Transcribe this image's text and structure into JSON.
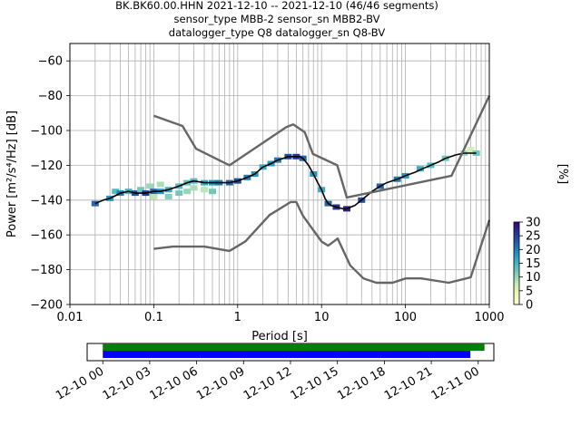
{
  "title_lines": [
    "BK.BK60.00.HHN   2021-12-10 -- 2021-12-10  (46/46 segments)",
    "sensor_type MBB-2 sensor_sn MBB2-BV",
    "datalogger_type Q8 datalogger_sn Q8-BV"
  ],
  "chart_data": [
    {
      "type": "line",
      "xlabel": "Period [s]",
      "ylabel": "Power [m²/s⁴/Hz] [dB]",
      "xscale": "log",
      "xlim": [
        0.01,
        1000
      ],
      "ylim": [
        -200,
        -50
      ],
      "x_ticks": [
        0.01,
        0.1,
        1,
        10,
        100,
        1000
      ],
      "x_tick_labels": [
        "0.01",
        "0.1",
        "1",
        "10",
        "100",
        "1000"
      ],
      "y_ticks": [
        -200,
        -180,
        -160,
        -140,
        -120,
        -100,
        -80,
        -60
      ],
      "y_tick_labels": [
        "−200",
        "−180",
        "−160",
        "−140",
        "−120",
        "−100",
        "−80",
        "−60"
      ],
      "grid": true,
      "series": [
        {
          "color": "#000000",
          "role": "mode",
          "x": [
            0.02,
            0.025,
            0.03,
            0.04,
            0.05,
            0.06,
            0.08,
            0.1,
            0.12,
            0.15,
            0.2,
            0.25,
            0.3,
            0.4,
            0.5,
            0.6,
            0.8,
            1,
            1.3,
            1.6,
            2,
            2.5,
            3,
            3.5,
            4,
            4.5,
            5,
            5.5,
            6,
            7,
            8,
            9,
            10,
            11,
            12,
            13,
            15,
            18,
            20,
            25,
            30,
            40,
            50,
            60,
            80,
            100,
            130,
            160,
            200,
            250,
            300,
            400,
            500,
            600,
            700
          ],
          "y": [
            -142,
            -140,
            -139,
            -136,
            -135,
            -136,
            -136,
            -135,
            -135,
            -134,
            -132,
            -130,
            -129,
            -130,
            -130,
            -130,
            -130,
            -129,
            -127,
            -125,
            -121,
            -119,
            -117,
            -116,
            -115,
            -115,
            -115,
            -115,
            -116,
            -120,
            -125,
            -130,
            -134,
            -139,
            -142,
            -143,
            -144,
            -145,
            -145,
            -143,
            -140,
            -135,
            -132,
            -130,
            -128,
            -126,
            -124,
            -122,
            -120,
            -118,
            -116,
            -114,
            -113,
            -113,
            -113
          ]
        },
        {
          "color": "#666666",
          "role": "high noise model",
          "x": [
            0.1,
            0.22,
            0.32,
            0.8,
            3.8,
            4.6,
            6.3,
            7.9,
            15.4,
            20,
            354.8,
            10000
          ],
          "y": [
            -91.5,
            -97.4,
            -110.5,
            -120,
            -98,
            -96.5,
            -101,
            -113.5,
            -120,
            -138.5,
            -126,
            -80
          ]
        },
        {
          "color": "#666666",
          "role": "low noise model",
          "x": [
            0.1,
            0.17,
            0.4,
            0.8,
            1.24,
            2.4,
            4.3,
            5,
            6,
            10,
            12,
            15.6,
            21.9,
            31.6,
            45,
            70,
            101,
            154,
            328,
            600,
            10000
          ],
          "y": [
            -168,
            -166.7,
            -166.7,
            -169.2,
            -163.7,
            -148.6,
            -141.1,
            -141.1,
            -149,
            -163.8,
            -166.2,
            -162.1,
            -177.5,
            -185,
            -187.5,
            -187.5,
            -185,
            -185,
            -187.5,
            -184.4,
            -151.5
          ]
        }
      ],
      "density": [
        {
          "x": 0.02,
          "y": -142,
          "pct": 22
        },
        {
          "x": 0.03,
          "y": -139,
          "pct": 18
        },
        {
          "x": 0.035,
          "y": -135,
          "pct": 14
        },
        {
          "x": 0.04,
          "y": -136,
          "pct": 20
        },
        {
          "x": 0.05,
          "y": -135,
          "pct": 15
        },
        {
          "x": 0.06,
          "y": -136,
          "pct": 24
        },
        {
          "x": 0.07,
          "y": -134,
          "pct": 12
        },
        {
          "x": 0.08,
          "y": -136,
          "pct": 26
        },
        {
          "x": 0.09,
          "y": -132,
          "pct": 10
        },
        {
          "x": 0.1,
          "y": -135,
          "pct": 22
        },
        {
          "x": 0.1,
          "y": -138,
          "pct": 8
        },
        {
          "x": 0.12,
          "y": -135,
          "pct": 18
        },
        {
          "x": 0.12,
          "y": -131,
          "pct": 9
        },
        {
          "x": 0.15,
          "y": -134,
          "pct": 16
        },
        {
          "x": 0.15,
          "y": -138,
          "pct": 11
        },
        {
          "x": 0.2,
          "y": -132,
          "pct": 14
        },
        {
          "x": 0.2,
          "y": -136,
          "pct": 12
        },
        {
          "x": 0.25,
          "y": -130,
          "pct": 13
        },
        {
          "x": 0.25,
          "y": -135,
          "pct": 10
        },
        {
          "x": 0.3,
          "y": -129,
          "pct": 14
        },
        {
          "x": 0.3,
          "y": -133,
          "pct": 9
        },
        {
          "x": 0.4,
          "y": -130,
          "pct": 16
        },
        {
          "x": 0.4,
          "y": -134,
          "pct": 8
        },
        {
          "x": 0.5,
          "y": -130,
          "pct": 18
        },
        {
          "x": 0.5,
          "y": -135,
          "pct": 12
        },
        {
          "x": 0.6,
          "y": -130,
          "pct": 20
        },
        {
          "x": 0.8,
          "y": -130,
          "pct": 22
        },
        {
          "x": 1,
          "y": -129,
          "pct": 24
        },
        {
          "x": 1.3,
          "y": -127,
          "pct": 20
        },
        {
          "x": 1.6,
          "y": -125,
          "pct": 18
        },
        {
          "x": 2,
          "y": -121,
          "pct": 16
        },
        {
          "x": 2.5,
          "y": -119,
          "pct": 18
        },
        {
          "x": 3,
          "y": -117,
          "pct": 20
        },
        {
          "x": 4,
          "y": -115,
          "pct": 24
        },
        {
          "x": 5,
          "y": -115,
          "pct": 26
        },
        {
          "x": 6,
          "y": -116,
          "pct": 22
        },
        {
          "x": 8,
          "y": -125,
          "pct": 18
        },
        {
          "x": 10,
          "y": -134,
          "pct": 16
        },
        {
          "x": 12,
          "y": -142,
          "pct": 22
        },
        {
          "x": 15,
          "y": -144,
          "pct": 26
        },
        {
          "x": 20,
          "y": -145,
          "pct": 28
        },
        {
          "x": 30,
          "y": -140,
          "pct": 24
        },
        {
          "x": 50,
          "y": -132,
          "pct": 22
        },
        {
          "x": 80,
          "y": -128,
          "pct": 20
        },
        {
          "x": 100,
          "y": -126,
          "pct": 18
        },
        {
          "x": 150,
          "y": -122,
          "pct": 16
        },
        {
          "x": 200,
          "y": -120,
          "pct": 14
        },
        {
          "x": 300,
          "y": -116,
          "pct": 12
        },
        {
          "x": 500,
          "y": -113,
          "pct": 10
        },
        {
          "x": 600,
          "y": -111,
          "pct": 6
        },
        {
          "x": 700,
          "y": -113,
          "pct": 12
        }
      ],
      "colorbar": {
        "label": "[%]",
        "range": [
          0,
          30
        ],
        "ticks": [
          0,
          5,
          10,
          15,
          20,
          25,
          30
        ],
        "tick_labels": [
          "0",
          "5",
          "10",
          "15",
          "20",
          "25",
          "30"
        ],
        "colors": [
          "#ffffd9",
          "#edf8b1",
          "#c7e9b4",
          "#7fcdbb",
          "#41b6c4",
          "#1d91c0",
          "#225ea8",
          "#253494",
          "#3f007d"
        ]
      }
    },
    {
      "type": "timeline",
      "x_tick_labels": [
        "12-10 00",
        "12-10 03",
        "12-10 06",
        "12-10 09",
        "12-10 12",
        "12-10 15",
        "12-10 18",
        "12-10 21",
        "12-11 00"
      ],
      "x_range_hours": [
        -1,
        25
      ],
      "bars": [
        {
          "color": "#008000",
          "start_hour": 0,
          "end_hour": 24.4
        },
        {
          "color": "#0000ff",
          "start_hour": 0,
          "end_hour": 23.5
        }
      ]
    }
  ]
}
